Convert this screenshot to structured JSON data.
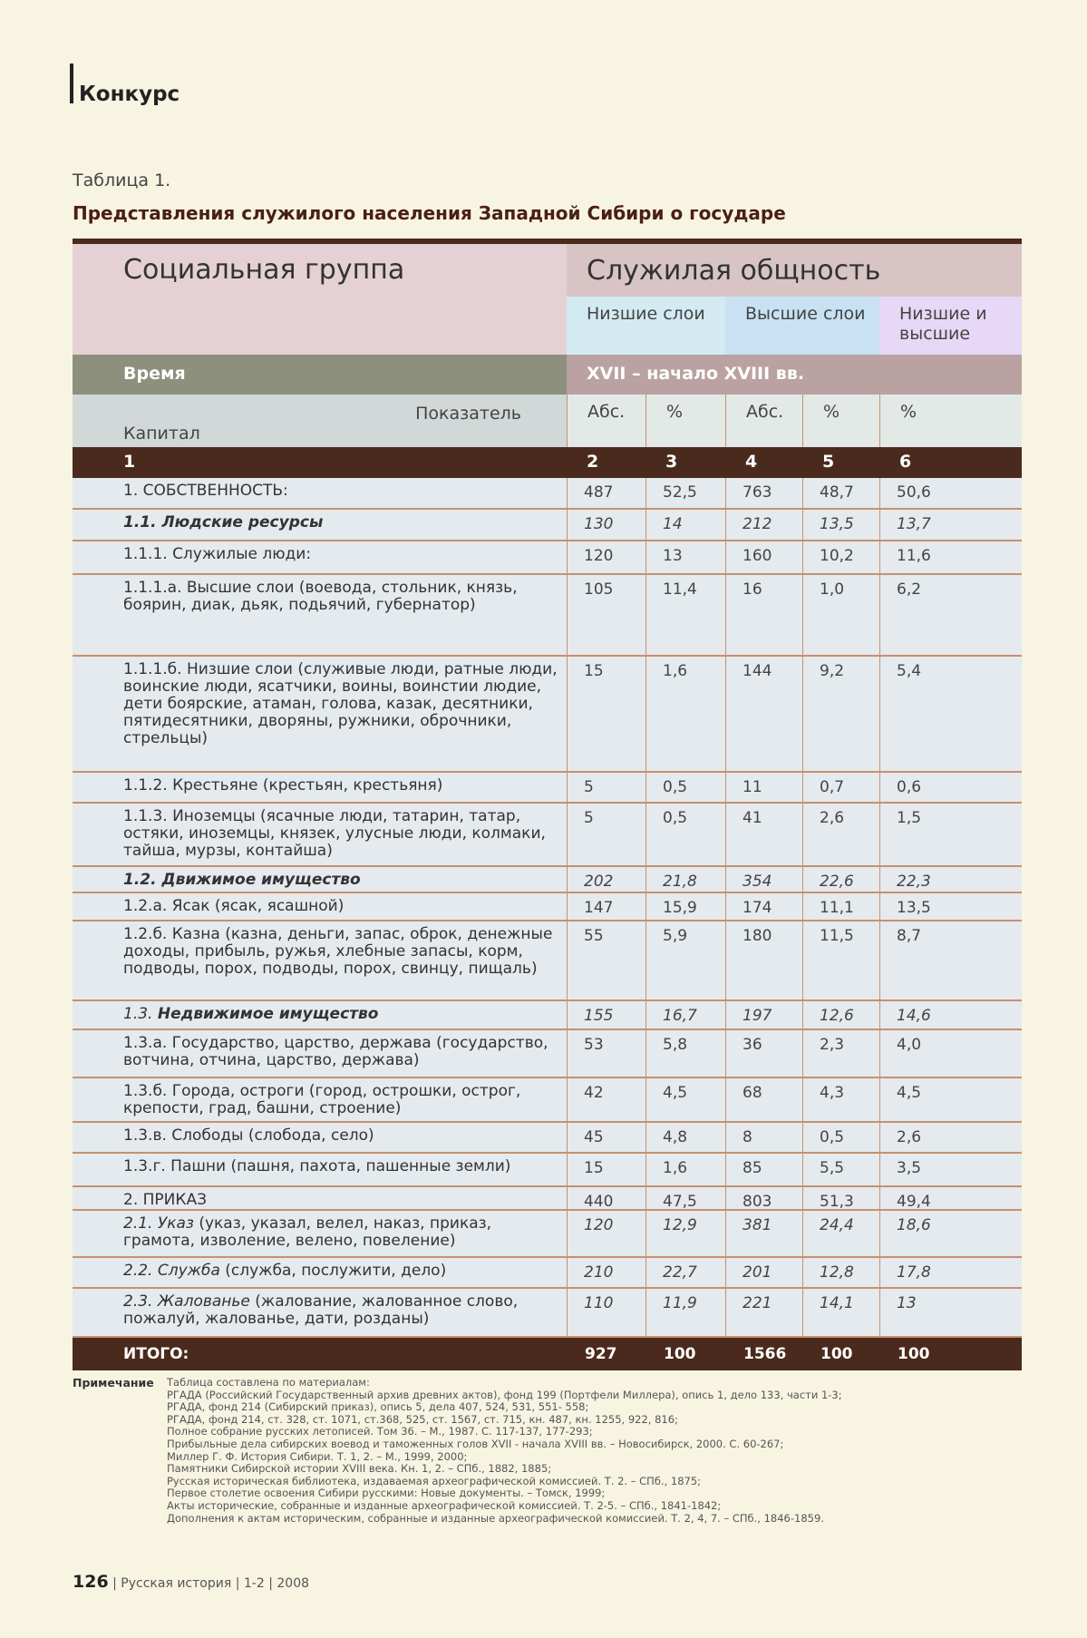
{
  "section": "Конкурс",
  "caption": "Таблица 1.",
  "title": "Представления служилого населения Западной Сибири о государе",
  "header": {
    "social_group": "Социальная группа",
    "community": "Служилая общность",
    "subgroups": [
      "Низшие слои",
      "Высшие слои",
      "Низшие и высшие"
    ],
    "subgroup_colors": [
      "#d3eaf3",
      "#c8e1f3",
      "#e6d8f6"
    ],
    "time_label": "Время",
    "time_value": "XVII – начало XVIII вв.",
    "indicator": "Показатель",
    "capital": "Капитал",
    "col_labels": [
      "Абс.",
      "%",
      "Абс.",
      "%",
      "%"
    ],
    "col_numbers": [
      "1",
      "2",
      "3",
      "4",
      "5",
      "6"
    ]
  },
  "rows": [
    {
      "label": "1. СОБСТВЕННОСТЬ:",
      "style": "normal",
      "values": [
        "487",
        "52,5",
        "763",
        "48,7",
        "50,6"
      ]
    },
    {
      "label": "1.1. Людские ресурсы",
      "style": "bold-italic",
      "values": [
        "130",
        "14",
        "212",
        "13,5",
        "13,7"
      ]
    },
    {
      "label": "1.1.1. Служилые люди:",
      "style": "normal",
      "values": [
        "120",
        "13",
        "160",
        "10,2",
        "11,6"
      ]
    },
    {
      "label": "1.1.1.а. Высшие слои (воевода, стольник, князь, боярин, диак, дьяк, подьячий, губернатор)",
      "style": "normal",
      "values": [
        "105",
        "11,4",
        "16",
        "1,0",
        "6,2"
      ]
    },
    {
      "label": "1.1.1.б. Низшие слои (служивые люди, ратные люди, воинские люди, ясатчики, воины, воинстии людие, дети боярские, атаман, голова, казак, десятники, пятидесятники, дворяны, ружники, оброчники, стрельцы)",
      "style": "normal",
      "values": [
        "15",
        "1,6",
        "144",
        "9,2",
        "5,4"
      ]
    },
    {
      "label": "1.1.2. Крестьяне (крестьян, крестьяня)",
      "style": "normal",
      "values": [
        "5",
        "0,5",
        "11",
        "0,7",
        "0,6"
      ]
    },
    {
      "label": "1.1.3. Иноземцы (ясачные люди, татарин, татар, остяки, иноземцы, князек, улусные люди, колмаки, тайша, мурзы, контайша)",
      "style": "normal",
      "values": [
        "5",
        "0,5",
        "41",
        "2,6",
        "1,5"
      ]
    },
    {
      "label": "1.2. Движимое имущество",
      "style": "bold-italic",
      "values": [
        "202",
        "21,8",
        "354",
        "22,6",
        "22,3"
      ]
    },
    {
      "label": "1.2.а. Ясак (ясак, ясашной)",
      "style": "normal",
      "values": [
        "147",
        "15,9",
        "174",
        "11,1",
        "13,5"
      ]
    },
    {
      "label": "1.2.б. Казна (казна, деньги, запас, оброк, денежные доходы, прибыль, ружья, хлебные запасы, корм, подводы, порох, подводы, порох, свинцу, пищаль)",
      "style": "normal",
      "values": [
        "55",
        "5,9",
        "180",
        "11,5",
        "8,7"
      ]
    },
    {
      "label": "1.3. Недвижимое имущество",
      "style": "italic-bold-part",
      "prefix": "1.3. ",
      "emph": "Недвижимое имущество",
      "values": [
        "155",
        "16,7",
        "197",
        "12,6",
        "14,6"
      ]
    },
    {
      "label": "1.3.а. Государство, царство, держава (государство, вотчина, отчина, царство, держава)",
      "style": "normal",
      "values": [
        "53",
        "5,8",
        "36",
        "2,3",
        "4,0"
      ]
    },
    {
      "label": "1.3.б. Города, остроги (город, острошки, острог, крепости, град, башни, строение)",
      "style": "normal",
      "values": [
        "42",
        "4,5",
        "68",
        "4,3",
        "4,5"
      ]
    },
    {
      "label": "1.3.в. Слободы (слобода, село)",
      "style": "normal",
      "values": [
        "45",
        "4,8",
        "8",
        "0,5",
        "2,6"
      ]
    },
    {
      "label": "1.3.г. Пашни (пашня, пахота, пашенные земли)",
      "style": "normal",
      "values": [
        "15",
        "1,6",
        "85",
        "5,5",
        "3,5"
      ]
    },
    {
      "label": "2. ПРИКАЗ",
      "style": "normal",
      "values": [
        "440",
        "47,5",
        "803",
        "51,3",
        "49,4"
      ]
    },
    {
      "label": "2.1. Указ (указ, указал, велел, наказ, приказ, грамота, изволение, велено, повеление)",
      "style": "italic-part",
      "prefix": "2.1. Указ",
      "rest": " (указ, указал, велел, наказ, приказ, грамота, изволение, велено, повеление)",
      "values": [
        "120",
        "12,9",
        "381",
        "24,4",
        "18,6"
      ]
    },
    {
      "label": "2.2. Служба (служба, послужити, дело)",
      "style": "italic-part",
      "prefix": "2.2. Служба",
      "rest": " (служба, послужити, дело)",
      "values": [
        "210",
        "22,7",
        "201",
        "12,8",
        "17,8"
      ]
    },
    {
      "label": "2.3. Жалованье (жалование, жалованное слово, пожалуй, жалованье, дати, розданы)",
      "style": "italic-part",
      "prefix": "2.3. Жалованье",
      "rest": " (жалование, жалованное слово, пожалуй, жалованье, дати, розданы)",
      "values": [
        "110",
        "11,9",
        "221",
        "14,1",
        "13"
      ]
    }
  ],
  "total": {
    "label": "ИТОГО:",
    "values": [
      "927",
      "100",
      "1566",
      "100",
      "100"
    ]
  },
  "notes": {
    "label": "Примечание",
    "lines": [
      "Таблица составлена по материалам:",
      "РГАДА (Российский Государственный архив древних актов), фонд 199 (Портфели Миллера), опись 1, дело 133, части 1-3;",
      "РГАДА, фонд 214 (Сибирский приказ), опись 5, дела 407, 524, 531, 551- 558;",
      "РГАДА, фонд 214, ст. 328, ст. 1071, ст.368, 525, ст. 1567, ст. 715, кн. 487,  кн. 1255, 922, 816;",
      "Полное собрание русских летописей. Том 36. – М., 1987. С. 117-137, 177-293;",
      "Прибыльные дела сибирских воевод и таможенных голов XVII - начала XVIII вв. – Новосибирск, 2000. С. 60-267;",
      "Миллер Г. Ф. История Сибири. Т. 1, 2. – М., 1999, 2000;",
      "Памятники Сибирской истории XVIII века. Кн. 1, 2. – СПб., 1882, 1885;",
      "Русская историческая библиотека, издаваемая археографической комиссией. Т. 2. – СПб., 1875;",
      "Первое столетие освоения Сибири русскими: Новые документы. – Томск, 1999;",
      "Акты исторические, собранные и изданные археографической комиссией. Т. 2-5. – СПб., 1841-1842;",
      "Дополнения к актам историческим, собранные и изданные археографической комиссией. Т. 2, 4, 7. – СПб., 1846-1859."
    ]
  },
  "footer": {
    "page": "126",
    "journal": "Русская история",
    "issue": "1-2",
    "year": "2008"
  }
}
